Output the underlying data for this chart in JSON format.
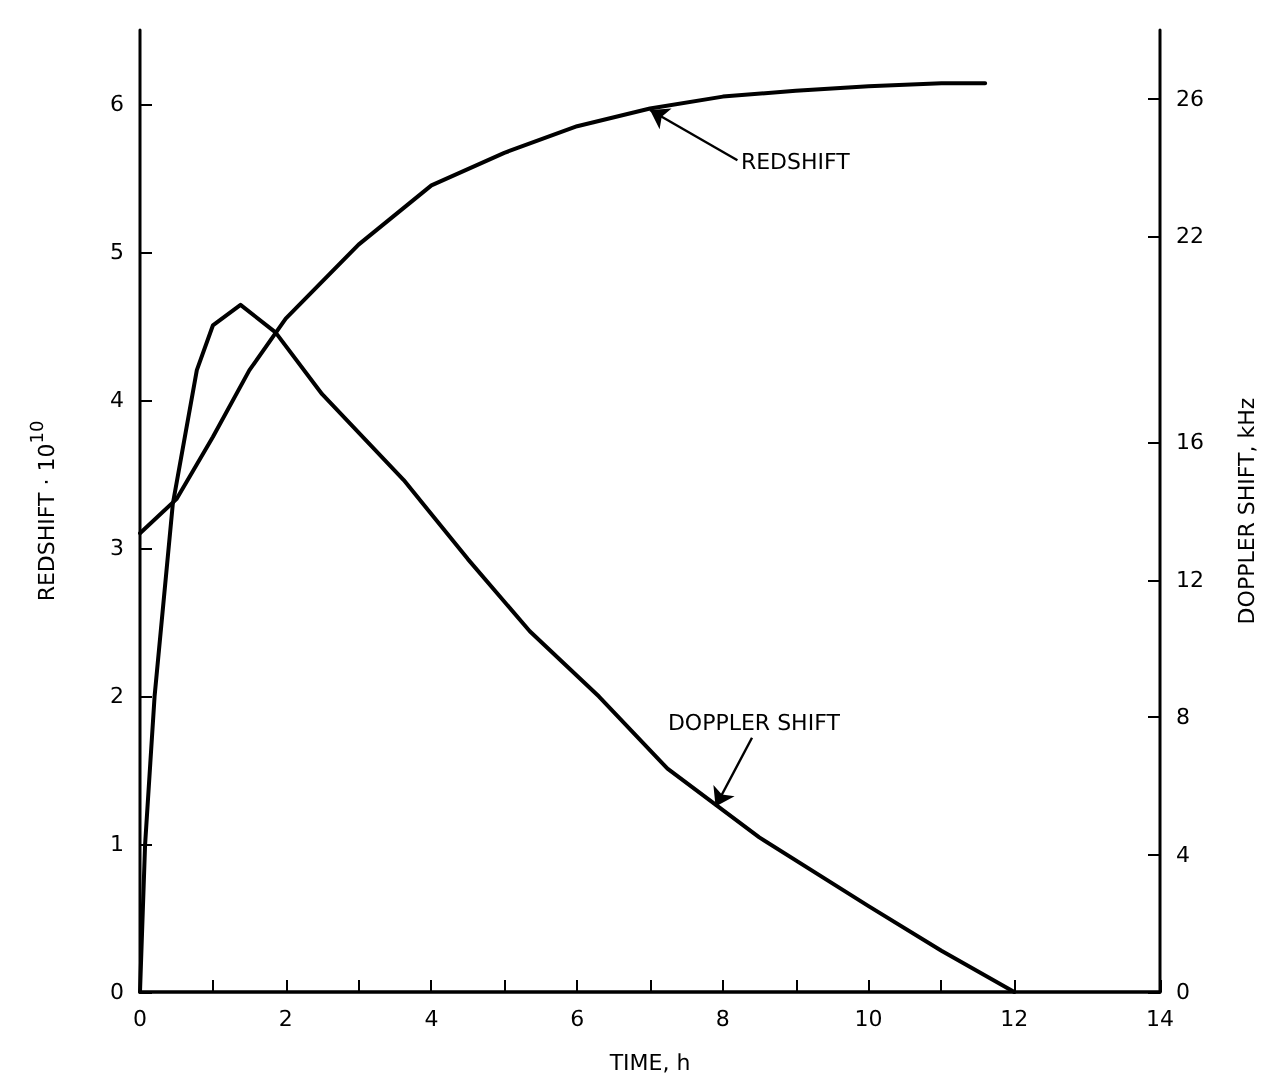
{
  "chart_data": {
    "type": "line",
    "xlabel": "TIME, h",
    "ylabel": "REDSHIFT · 10$^{10}$",
    "y2label": "DOPPLER SHIFT, kHz",
    "xlim": [
      0,
      14
    ],
    "xticks": [
      0,
      {
        "value": 1,
        "label": null
      },
      2,
      {
        "value": 3,
        "label": null
      },
      4,
      {
        "value": 5,
        "label": null
      },
      6,
      {
        "value": 7,
        "label": null
      },
      8,
      {
        "value": 9,
        "label": null
      },
      10,
      {
        "value": 11,
        "label": null
      },
      12,
      14
    ],
    "ylim": [
      0,
      6.5
    ],
    "yticks": [
      0,
      1,
      2,
      3,
      4,
      5,
      6
    ],
    "y2lim": [
      0,
      28
    ],
    "y2ticks": [
      0,
      4,
      8,
      12,
      16,
      22,
      26
    ],
    "grid": false,
    "legend": false,
    "marker": "none",
    "line_style": "solid",
    "series": [
      {
        "name": "REDSHIFT",
        "color": "#000000",
        "x": [
          0,
          0.5,
          1,
          1.5,
          2,
          3,
          4,
          5,
          6,
          7,
          8,
          9,
          10,
          11,
          11.6
        ],
        "values": [
          3.1,
          3.33,
          3.75,
          4.2,
          4.55,
          5.05,
          5.45,
          5.67,
          5.85,
          5.97,
          6.05,
          6.09,
          6.12,
          6.14,
          6.14
        ]
      },
      {
        "name": "DOPPLER SHIFT",
        "color": "#000000",
        "axis": "y2",
        "x": [
          0,
          0.07,
          0.2,
          0.45,
          0.78,
          1.0,
          1.38,
          1.86,
          2.5,
          3.62,
          4.5,
          5.35,
          6.3,
          7.24,
          8.5,
          10,
          11,
          12
        ],
        "values": [
          0,
          4.3,
          8.6,
          14.2,
          18.1,
          19.4,
          20.0,
          19.2,
          17.4,
          14.9,
          12.6,
          10.5,
          8.6,
          6.5,
          4.5,
          2.5,
          1.2,
          0
        ]
      }
    ]
  }
}
